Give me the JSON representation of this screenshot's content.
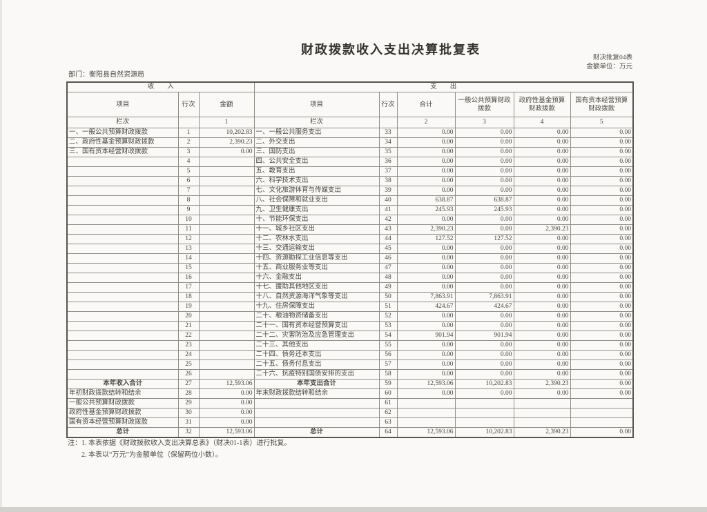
{
  "title": "财政拨款收入支出决算批复表",
  "form_code": "财决批复04表",
  "unit_label": "金额单位：万元",
  "department": "部门：衡阳县自然资源局",
  "sections": {
    "income": "收　　入",
    "expense": "支　　出"
  },
  "columns": {
    "income": [
      "项目",
      "行次",
      "金额"
    ],
    "expense": [
      "项目",
      "行次",
      "合计",
      "一般公共预算财政拨款",
      "政府性基金预算财政拨款",
      "国有资本经营预算财政拨款"
    ]
  },
  "lanci": {
    "label": "栏次",
    "income_col": "1",
    "expense_cols": [
      "2",
      "3",
      "4",
      "5"
    ]
  },
  "rows": [
    {
      "in_item": "一、一般公共预算财政拨款",
      "in_line": "1",
      "in_amt": "10,202.83",
      "ex_item": "一、一般公共服务支出",
      "ex_line": "33",
      "ex_total": "0.00",
      "ex_gen": "0.00",
      "ex_fund": "0.00",
      "ex_cap": "0.00"
    },
    {
      "in_item": "二、政府性基金预算财政拨款",
      "in_line": "2",
      "in_amt": "2,390.23",
      "ex_item": "二、外交支出",
      "ex_line": "34",
      "ex_total": "0.00",
      "ex_gen": "0.00",
      "ex_fund": "0.00",
      "ex_cap": "0.00"
    },
    {
      "in_item": "三、国有资本经营财政拨款",
      "in_line": "3",
      "in_amt": "0.00",
      "ex_item": "三、国防支出",
      "ex_line": "35",
      "ex_total": "0.00",
      "ex_gen": "0.00",
      "ex_fund": "0.00",
      "ex_cap": "0.00"
    },
    {
      "in_item": "",
      "in_line": "4",
      "in_amt": "",
      "ex_item": "四、公共安全支出",
      "ex_line": "36",
      "ex_total": "0.00",
      "ex_gen": "0.00",
      "ex_fund": "0.00",
      "ex_cap": "0.00"
    },
    {
      "in_item": "",
      "in_line": "5",
      "in_amt": "",
      "ex_item": "五、教育支出",
      "ex_line": "37",
      "ex_total": "0.00",
      "ex_gen": "0.00",
      "ex_fund": "0.00",
      "ex_cap": "0.00"
    },
    {
      "in_item": "",
      "in_line": "6",
      "in_amt": "",
      "ex_item": "六、科学技术支出",
      "ex_line": "38",
      "ex_total": "0.00",
      "ex_gen": "0.00",
      "ex_fund": "0.00",
      "ex_cap": "0.00"
    },
    {
      "in_item": "",
      "in_line": "7",
      "in_amt": "",
      "ex_item": "七、文化旅游体育与传媒支出",
      "ex_line": "39",
      "ex_total": "0.00",
      "ex_gen": "0.00",
      "ex_fund": "0.00",
      "ex_cap": "0.00"
    },
    {
      "in_item": "",
      "in_line": "8",
      "in_amt": "",
      "ex_item": "八、社会保障和就业支出",
      "ex_line": "40",
      "ex_total": "638.87",
      "ex_gen": "638.87",
      "ex_fund": "0.00",
      "ex_cap": "0.00"
    },
    {
      "in_item": "",
      "in_line": "9",
      "in_amt": "",
      "ex_item": "九、卫生健康支出",
      "ex_line": "41",
      "ex_total": "245.93",
      "ex_gen": "245.93",
      "ex_fund": "0.00",
      "ex_cap": "0.00"
    },
    {
      "in_item": "",
      "in_line": "10",
      "in_amt": "",
      "ex_item": "十、节能环保支出",
      "ex_line": "42",
      "ex_total": "0.00",
      "ex_gen": "0.00",
      "ex_fund": "0.00",
      "ex_cap": "0.00"
    },
    {
      "in_item": "",
      "in_line": "11",
      "in_amt": "",
      "ex_item": "十一、城乡社区支出",
      "ex_line": "43",
      "ex_total": "2,390.23",
      "ex_gen": "0.00",
      "ex_fund": "2,390.23",
      "ex_cap": "0.00"
    },
    {
      "in_item": "",
      "in_line": "12",
      "in_amt": "",
      "ex_item": "十二、农林水支出",
      "ex_line": "44",
      "ex_total": "127.52",
      "ex_gen": "127.52",
      "ex_fund": "0.00",
      "ex_cap": "0.00"
    },
    {
      "in_item": "",
      "in_line": "13",
      "in_amt": "",
      "ex_item": "十三、交通运输支出",
      "ex_line": "45",
      "ex_total": "0.00",
      "ex_gen": "0.00",
      "ex_fund": "0.00",
      "ex_cap": "0.00"
    },
    {
      "in_item": "",
      "in_line": "14",
      "in_amt": "",
      "ex_item": "十四、资源勘探工业信息等支出",
      "ex_line": "46",
      "ex_total": "0.00",
      "ex_gen": "0.00",
      "ex_fund": "0.00",
      "ex_cap": "0.00"
    },
    {
      "in_item": "",
      "in_line": "15",
      "in_amt": "",
      "ex_item": "十五、商业服务业等支出",
      "ex_line": "47",
      "ex_total": "0.00",
      "ex_gen": "0.00",
      "ex_fund": "0.00",
      "ex_cap": "0.00"
    },
    {
      "in_item": "",
      "in_line": "16",
      "in_amt": "",
      "ex_item": "十六、金融支出",
      "ex_line": "48",
      "ex_total": "0.00",
      "ex_gen": "0.00",
      "ex_fund": "0.00",
      "ex_cap": "0.00"
    },
    {
      "in_item": "",
      "in_line": "17",
      "in_amt": "",
      "ex_item": "十七、援助其他地区支出",
      "ex_line": "49",
      "ex_total": "0.00",
      "ex_gen": "0.00",
      "ex_fund": "0.00",
      "ex_cap": "0.00"
    },
    {
      "in_item": "",
      "in_line": "18",
      "in_amt": "",
      "ex_item": "十八、自然资源海洋气象等支出",
      "ex_line": "50",
      "ex_total": "7,863.91",
      "ex_gen": "7,863.91",
      "ex_fund": "0.00",
      "ex_cap": "0.00"
    },
    {
      "in_item": "",
      "in_line": "19",
      "in_amt": "",
      "ex_item": "十九、住房保障支出",
      "ex_line": "51",
      "ex_total": "424.67",
      "ex_gen": "424.67",
      "ex_fund": "0.00",
      "ex_cap": "0.00"
    },
    {
      "in_item": "",
      "in_line": "20",
      "in_amt": "",
      "ex_item": "二十、粮油物资储备支出",
      "ex_line": "52",
      "ex_total": "0.00",
      "ex_gen": "0.00",
      "ex_fund": "0.00",
      "ex_cap": "0.00"
    },
    {
      "in_item": "",
      "in_line": "21",
      "in_amt": "",
      "ex_item": "二十一、国有资本经营预算支出",
      "ex_line": "53",
      "ex_total": "0.00",
      "ex_gen": "0.00",
      "ex_fund": "0.00",
      "ex_cap": "0.00"
    },
    {
      "in_item": "",
      "in_line": "22",
      "in_amt": "",
      "ex_item": "二十二、灾害防治及应急管理支出",
      "ex_line": "54",
      "ex_total": "901.94",
      "ex_gen": "901.94",
      "ex_fund": "0.00",
      "ex_cap": "0.00"
    },
    {
      "in_item": "",
      "in_line": "23",
      "in_amt": "",
      "ex_item": "二十三、其他支出",
      "ex_line": "55",
      "ex_total": "0.00",
      "ex_gen": "0.00",
      "ex_fund": "0.00",
      "ex_cap": "0.00"
    },
    {
      "in_item": "",
      "in_line": "24",
      "in_amt": "",
      "ex_item": "二十四、债务还本支出",
      "ex_line": "56",
      "ex_total": "0.00",
      "ex_gen": "0.00",
      "ex_fund": "0.00",
      "ex_cap": "0.00"
    },
    {
      "in_item": "",
      "in_line": "25",
      "in_amt": "",
      "ex_item": "二十五、债务付息支出",
      "ex_line": "57",
      "ex_total": "0.00",
      "ex_gen": "0.00",
      "ex_fund": "0.00",
      "ex_cap": "0.00"
    },
    {
      "in_item": "",
      "in_line": "26",
      "in_amt": "",
      "ex_item": "二十六、抗疫特别国债安排的支出",
      "ex_line": "58",
      "ex_total": "0.00",
      "ex_gen": "0.00",
      "ex_fund": "0.00",
      "ex_cap": "0.00"
    },
    {
      "in_item": "本年收入合计",
      "in_style": "bold",
      "in_line": "27",
      "in_amt": "12,593.06",
      "ex_item": "本年支出合计",
      "ex_style": "bold",
      "ex_line": "59",
      "ex_total": "12,593.06",
      "ex_gen": "10,202.83",
      "ex_fund": "2,390.23",
      "ex_cap": "0.00"
    },
    {
      "in_item": "年初财政拨款结转和结余",
      "in_line": "28",
      "in_amt": "0.00",
      "ex_item": "年末财政拨款结转和结余",
      "ex_line": "60",
      "ex_total": "0.00",
      "ex_gen": "0.00",
      "ex_fund": "0.00",
      "ex_cap": "0.00"
    },
    {
      "in_item": "一般公共预算财政拨款",
      "in_style": "indent",
      "in_line": "29",
      "in_amt": "0.00",
      "ex_item": "",
      "ex_line": "61",
      "ex_total": "",
      "ex_gen": "",
      "ex_fund": "",
      "ex_cap": ""
    },
    {
      "in_item": "政府性基金预算财政拨款",
      "in_style": "indent",
      "in_line": "30",
      "in_amt": "0.00",
      "ex_item": "",
      "ex_line": "62",
      "ex_total": "",
      "ex_gen": "",
      "ex_fund": "",
      "ex_cap": ""
    },
    {
      "in_item": "国有资本经营预算财政拨款",
      "in_style": "indent",
      "in_line": "31",
      "in_amt": "0.00",
      "ex_item": "",
      "ex_line": "63",
      "ex_total": "",
      "ex_gen": "",
      "ex_fund": "",
      "ex_cap": ""
    },
    {
      "in_item": "总计",
      "in_style": "bold",
      "in_line": "32",
      "in_amt": "12,593.06",
      "ex_item": "总计",
      "ex_style": "bold",
      "ex_line": "64",
      "ex_total": "12,593.06",
      "ex_gen": "10,202.83",
      "ex_fund": "2,390.23",
      "ex_cap": "0.00"
    }
  ],
  "notes": [
    "注：1. 本表依据《财政拨款收入支出决算总表》（财决01-1表）进行批复。",
    "2. 本表以“万元”为金额单位（保留两位小数）。"
  ]
}
